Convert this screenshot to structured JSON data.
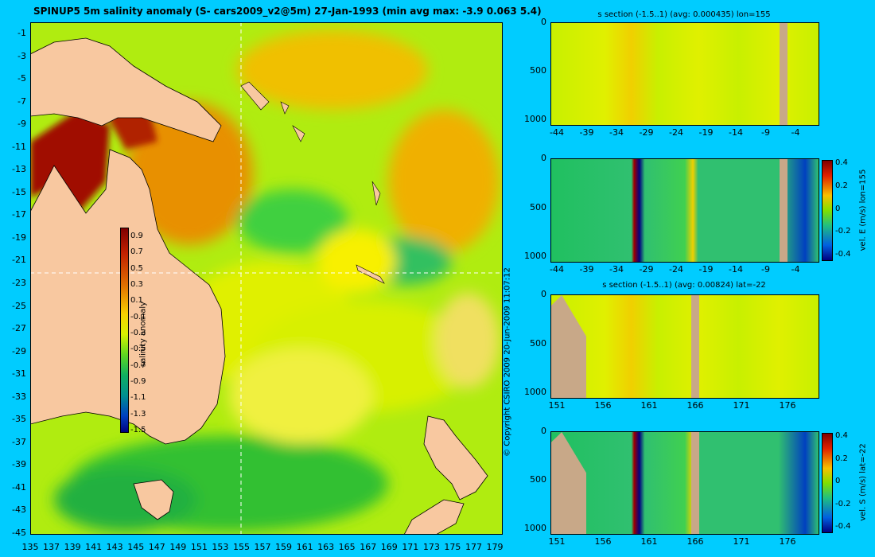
{
  "main_map": {
    "title": "SPINUP5 5m salinity anomaly (S- cars2009_v2@5m) 27-Jan-1993 (min avg max: -3.9 0.063 5.4)",
    "x_ticks": [
      "135",
      "137",
      "139",
      "141",
      "143",
      "145",
      "147",
      "149",
      "151",
      "153",
      "155",
      "157",
      "159",
      "161",
      "163",
      "165",
      "167",
      "169",
      "171",
      "173",
      "175",
      "177",
      "179"
    ],
    "y_ticks": [
      "-1",
      "-3",
      "-5",
      "-7",
      "-9",
      "-11",
      "-13",
      "-15",
      "-17",
      "-19",
      "-21",
      "-23",
      "-25",
      "-27",
      "-29",
      "-31",
      "-33",
      "-35",
      "-37",
      "-39",
      "-41",
      "-43",
      "-45"
    ],
    "xlim": [
      135,
      180
    ],
    "ylim": [
      -45,
      0
    ],
    "crosshair": {
      "lon": 155,
      "lat": -22
    },
    "colorbar": {
      "label": "salinity anomaly",
      "ticks": [
        "0.9",
        "0.7",
        "0.5",
        "0.3",
        "0.1",
        "-0.1",
        "-0.3",
        "-0.5",
        "-0.7",
        "-0.9",
        "-1.1",
        "-1.3",
        "-1.5"
      ]
    },
    "copyright": "© Copyright CSIRO 2009   20-Jun-2009 11:07:12",
    "colors": {
      "land": "#f8c8a0",
      "ocean_base": "#b8f000",
      "background": "#00ccff"
    }
  },
  "panels": [
    {
      "id": "s-lon",
      "title": "s section (-1.5..1) (avg: 0.000435) lon=155",
      "x_ticks": [
        "-44",
        "-39",
        "-34",
        "-29",
        "-24",
        "-19",
        "-14",
        "-9",
        "-4"
      ],
      "y_ticks": [
        "0",
        "500",
        "1000"
      ],
      "colorbar_label": "",
      "colorbar_ticks": []
    },
    {
      "id": "vE-lon",
      "title": "",
      "x_ticks": [
        "-44",
        "-39",
        "-34",
        "-29",
        "-24",
        "-19",
        "-14",
        "-9",
        "-4"
      ],
      "y_ticks": [
        "0",
        "500",
        "1000"
      ],
      "colorbar_label": "vel. E (m/s) lon=155",
      "colorbar_ticks": [
        "0.4",
        "0.2",
        "0",
        "-0.2",
        "-0.4"
      ]
    },
    {
      "id": "s-lat",
      "title": "s section (-1.5..1) (avg: 0.00824) lat=-22",
      "x_ticks": [
        "151",
        "156",
        "161",
        "166",
        "171",
        "176"
      ],
      "y_ticks": [
        "0",
        "500",
        "1000"
      ],
      "colorbar_label": "",
      "colorbar_ticks": []
    },
    {
      "id": "vS-lat",
      "title": "",
      "x_ticks": [
        "151",
        "156",
        "161",
        "166",
        "171",
        "176"
      ],
      "y_ticks": [
        "0",
        "500",
        "1000"
      ],
      "colorbar_label": "vel. S (m/s) lat=-22",
      "colorbar_ticks": [
        "0.4",
        "0.2",
        "0",
        "-0.2",
        "-0.4"
      ]
    }
  ],
  "chart_data": [
    {
      "type": "heatmap",
      "title": "SPINUP5 5m salinity anomaly (S- cars2009_v2@5m) 27-Jan-1993 (min avg max: -3.9 0.063 5.4)",
      "xlim": [
        135,
        180
      ],
      "ylim": [
        -45,
        0
      ],
      "colorbar_range": [
        -1.5,
        1
      ],
      "stats": {
        "min": -3.9,
        "avg": 0.063,
        "max": 5.4
      }
    },
    {
      "type": "heatmap",
      "title": "s section (-1.5..1) (avg: 0.000435) lon=155",
      "x_range": [
        -45,
        0
      ],
      "y_range": [
        0,
        1000
      ],
      "avg": 0.000435
    },
    {
      "type": "heatmap",
      "title": "",
      "x_range": [
        -45,
        0
      ],
      "y_range": [
        0,
        1000
      ],
      "colorbar_label": "vel. E (m/s) lon=155",
      "colorbar_range": [
        -0.4,
        0.5
      ]
    },
    {
      "type": "heatmap",
      "title": "s section (-1.5..1) (avg: 0.00824) lat=-22",
      "x_range": [
        150,
        180
      ],
      "y_range": [
        0,
        1000
      ],
      "avg": 0.00824
    },
    {
      "type": "heatmap",
      "title": "",
      "x_range": [
        150,
        180
      ],
      "y_range": [
        0,
        1000
      ],
      "colorbar_label": "vel. S (m/s) lat=-22",
      "colorbar_range": [
        -0.4,
        0.5
      ]
    }
  ]
}
